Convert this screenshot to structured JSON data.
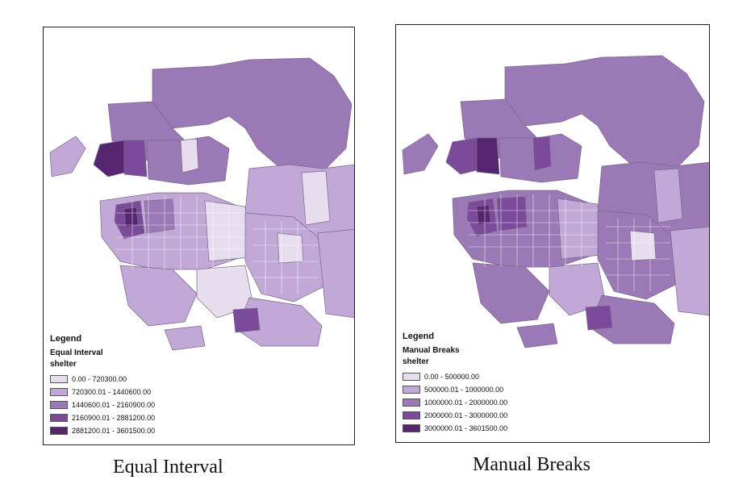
{
  "maps": [
    {
      "id": "left",
      "legend_title": "Legend",
      "method": "Equal Interval",
      "field": "shelter",
      "classes": [
        {
          "label": "0.00 - 720300.00",
          "color": "#e8dcef"
        },
        {
          "label": "720300.01 - 1440600.00",
          "color": "#c2a8d6"
        },
        {
          "label": "1440600.01 - 2160900.00",
          "color": "#9b78b6"
        },
        {
          "label": "2160900.01 - 2881200.00",
          "color": "#7b4a9a"
        },
        {
          "label": "2881200.01 - 3601500.00",
          "color": "#56256f"
        }
      ],
      "caption": "Equal Interval"
    },
    {
      "id": "right",
      "legend_title": "Legend",
      "method": "Manual Breaks",
      "field": "shelter",
      "classes": [
        {
          "label": "0.00 - 500000.00",
          "color": "#e8dcef"
        },
        {
          "label": "500000.01 - 1000000.00",
          "color": "#c2a8d6"
        },
        {
          "label": "1000000.01 - 2000000.00",
          "color": "#9b78b6"
        },
        {
          "label": "2000000.01 - 3000000.00",
          "color": "#7b4a9a"
        },
        {
          "label": "3000000.01 - 3601500.00",
          "color": "#56256f"
        }
      ],
      "caption": "Manual Breaks"
    }
  ]
}
